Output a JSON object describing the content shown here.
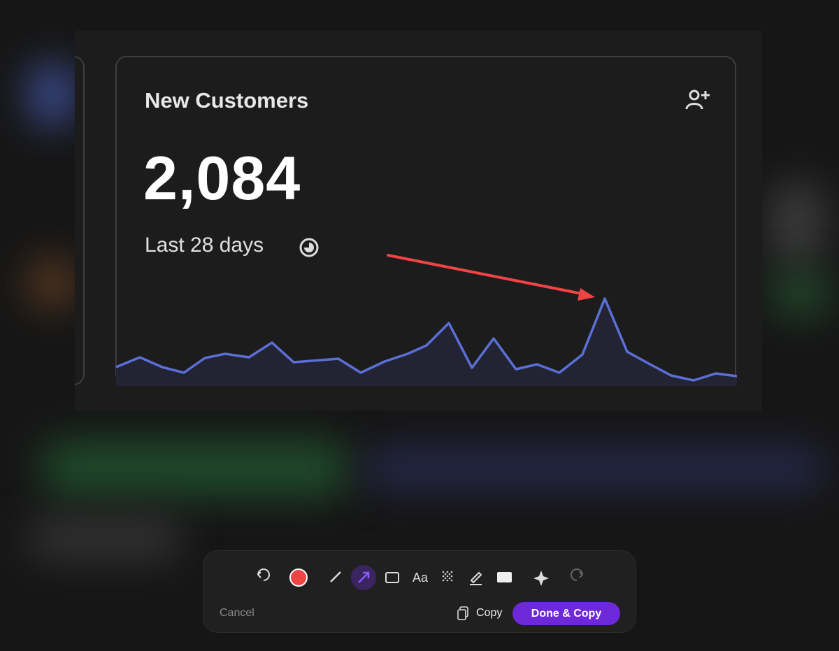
{
  "card": {
    "title": "New Customers",
    "value": "2,084",
    "period": "Last 28 days"
  },
  "toolbar": {
    "text_tool": "Aa",
    "cancel": "Cancel",
    "copy": "Copy",
    "done": "Done & Copy"
  }
}
